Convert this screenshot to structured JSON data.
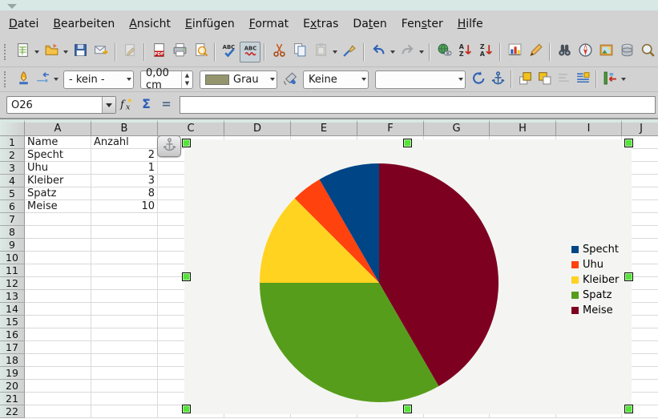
{
  "menubar": {
    "items": [
      {
        "pre": "",
        "mn": "D",
        "post": "atei"
      },
      {
        "pre": "",
        "mn": "B",
        "post": "earbeiten"
      },
      {
        "pre": "",
        "mn": "A",
        "post": "nsicht"
      },
      {
        "pre": "",
        "mn": "E",
        "post": "infügen"
      },
      {
        "pre": "",
        "mn": "F",
        "post": "ormat"
      },
      {
        "pre": "E",
        "mn": "x",
        "post": "tras"
      },
      {
        "pre": "Da",
        "mn": "t",
        "post": "en"
      },
      {
        "pre": "Fen",
        "mn": "s",
        "post": "ter"
      },
      {
        "pre": "",
        "mn": "H",
        "post": "ilfe"
      }
    ]
  },
  "toolbar_standard": {
    "items": [
      {
        "icon": "new-document",
        "dropdown": true
      },
      {
        "icon": "open-folder",
        "dropdown": true
      },
      {
        "icon": "save"
      },
      {
        "icon": "email"
      },
      {
        "sep": true
      },
      {
        "icon": "edit-file",
        "disabled": true
      },
      {
        "sep": true
      },
      {
        "icon": "export-pdf"
      },
      {
        "icon": "print"
      },
      {
        "icon": "page-preview"
      },
      {
        "sep": true
      },
      {
        "icon": "spellcheck"
      },
      {
        "icon": "auto-spellcheck",
        "active": true
      },
      {
        "sep": true
      },
      {
        "icon": "cut"
      },
      {
        "icon": "copy"
      },
      {
        "icon": "paste",
        "disabled": true,
        "dropdown": true
      },
      {
        "icon": "format-paintbrush"
      },
      {
        "sep": true
      },
      {
        "icon": "undo",
        "dropdown": true
      },
      {
        "icon": "redo",
        "disabled": true,
        "dropdown": true
      },
      {
        "sep": true
      },
      {
        "icon": "hyperlink"
      },
      {
        "icon": "sort-ascending"
      },
      {
        "icon": "sort-descending"
      },
      {
        "sep": true
      },
      {
        "icon": "insert-chart"
      },
      {
        "icon": "draw-functions"
      },
      {
        "sep": true
      },
      {
        "icon": "find-replace"
      },
      {
        "icon": "navigator"
      },
      {
        "icon": "gallery"
      },
      {
        "icon": "data-sources"
      },
      {
        "icon": "zoom"
      }
    ]
  },
  "toolbar_object": {
    "items": [
      {
        "type": "icon",
        "icon": "line-dialog"
      },
      {
        "type": "icon",
        "icon": "arrow-style",
        "dropdown": true
      },
      {
        "type": "select",
        "name": "line-style-select",
        "value": "- kein -"
      },
      {
        "type": "spinner",
        "name": "line-width-input",
        "value": "0,00 cm"
      },
      {
        "type": "colorselect",
        "name": "line-color-select",
        "value": "Grau",
        "swatch": "#95956d"
      },
      {
        "type": "icon",
        "icon": "area-dialog"
      },
      {
        "type": "select",
        "name": "area-style-select",
        "value": "Keine"
      },
      {
        "type": "select",
        "name": "area-fill-select",
        "value": ""
      },
      {
        "type": "icon",
        "icon": "rotate"
      },
      {
        "type": "icon",
        "icon": "anchor"
      },
      {
        "type": "sep"
      },
      {
        "type": "icon",
        "icon": "bring-to-front"
      },
      {
        "type": "icon",
        "icon": "send-to-back"
      },
      {
        "type": "icon",
        "icon": "edit-points",
        "disabled": true
      },
      {
        "type": "icon",
        "icon": "text-wrap"
      },
      {
        "type": "sep"
      },
      {
        "type": "icon",
        "icon": "alignment",
        "dropdown": true
      }
    ]
  },
  "formula_bar": {
    "name_box_value": "O26",
    "input_value": "",
    "icons": [
      "function-wizard",
      "sum",
      "formula"
    ]
  },
  "sheet": {
    "columns": [
      "A",
      "B",
      "C",
      "D",
      "E",
      "F",
      "G",
      "H",
      "I",
      "J"
    ],
    "rows": [
      "1",
      "2",
      "3",
      "4",
      "5",
      "6",
      "7",
      "8",
      "9",
      "10",
      "11",
      "12",
      "13",
      "14",
      "15",
      "16",
      "17",
      "18",
      "19",
      "20",
      "21",
      "22"
    ],
    "cells": [
      {
        "col": "A",
        "row": 1,
        "value": "Name",
        "align": "left"
      },
      {
        "col": "B",
        "row": 1,
        "value": "Anzahl",
        "align": "left"
      },
      {
        "col": "A",
        "row": 2,
        "value": "Specht",
        "align": "left"
      },
      {
        "col": "B",
        "row": 2,
        "value": "2",
        "align": "right"
      },
      {
        "col": "A",
        "row": 3,
        "value": "Uhu",
        "align": "left"
      },
      {
        "col": "B",
        "row": 3,
        "value": "1",
        "align": "right"
      },
      {
        "col": "A",
        "row": 4,
        "value": "Kleiber",
        "align": "left"
      },
      {
        "col": "B",
        "row": 4,
        "value": "3",
        "align": "right"
      },
      {
        "col": "A",
        "row": 5,
        "value": "Spatz",
        "align": "left"
      },
      {
        "col": "B",
        "row": 5,
        "value": "8",
        "align": "right"
      },
      {
        "col": "A",
        "row": 6,
        "value": "Meise",
        "align": "left"
      },
      {
        "col": "B",
        "row": 6,
        "value": "10",
        "align": "right"
      }
    ]
  },
  "chart_data": {
    "type": "pie",
    "categories": [
      "Specht",
      "Uhu",
      "Kleiber",
      "Spatz",
      "Meise"
    ],
    "values": [
      2,
      1,
      3,
      8,
      10
    ],
    "colors": [
      "#004586",
      "#FF420E",
      "#FFD320",
      "#579D1C",
      "#7E0021"
    ],
    "title": "",
    "legend_position": "right",
    "legend_entries": [
      "Specht",
      "Uhu",
      "Kleiber",
      "Spatz",
      "Meise"
    ]
  },
  "colors": {
    "selection_handle": "#55e33b",
    "chart_background": "#f4f5f2"
  }
}
